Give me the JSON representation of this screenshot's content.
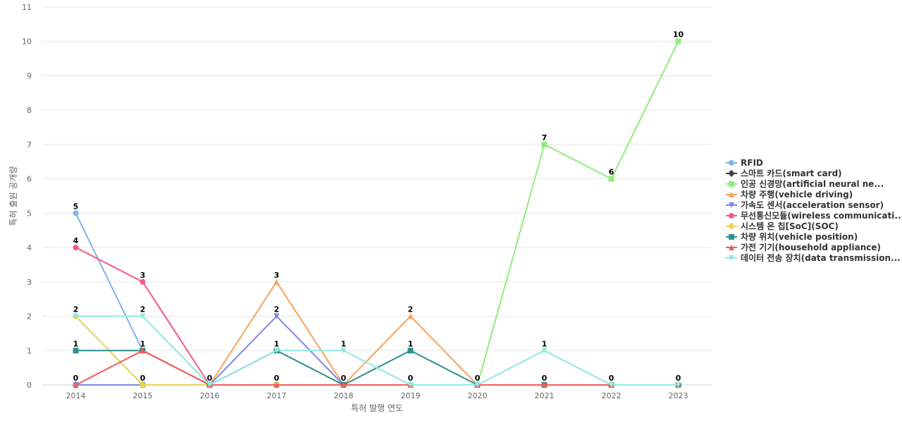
{
  "chart_data": {
    "type": "line",
    "title": "",
    "xlabel": "특허 발행 연도",
    "ylabel": "특허 출원 공개량",
    "x": [
      "2014",
      "2015",
      "2016",
      "2017",
      "2018",
      "2019",
      "2020",
      "2021",
      "2022",
      "2023"
    ],
    "ylim": [
      0,
      11
    ],
    "yticks": [
      0,
      1,
      2,
      3,
      4,
      5,
      6,
      7,
      8,
      9,
      10,
      11
    ],
    "grid": true,
    "legend_position": "right",
    "series": [
      {
        "name": "RFID",
        "color": "#7cb5ec",
        "marker": "circle",
        "values": [
          5,
          1,
          0,
          0,
          0,
          0,
          0,
          0,
          0,
          0
        ]
      },
      {
        "name": "스마트 카드(smart card)",
        "color": "#434348",
        "marker": "diamond",
        "values": [
          0,
          0,
          0,
          0,
          0,
          0,
          0,
          0,
          0,
          0
        ]
      },
      {
        "name": "인공 신경망(artificial neural ne...",
        "color": "#90ed7d",
        "marker": "square",
        "values": [
          0,
          0,
          0,
          0,
          0,
          0,
          0,
          7,
          6,
          10
        ]
      },
      {
        "name": "차량 주행(vehicle driving)",
        "color": "#f7a35c",
        "marker": "triangle",
        "values": [
          0,
          0,
          0,
          3,
          0,
          2,
          0,
          0,
          0,
          0
        ]
      },
      {
        "name": "가속도 센서(acceleration sensor)",
        "color": "#8085e9",
        "marker": "triangle-down",
        "values": [
          0,
          0,
          0,
          2,
          0,
          0,
          0,
          0,
          0,
          0
        ]
      },
      {
        "name": "무선통신모듈(wireless communicati...",
        "color": "#f15c80",
        "marker": "circle",
        "values": [
          4,
          3,
          0,
          0,
          0,
          0,
          0,
          0,
          0,
          0
        ]
      },
      {
        "name": "시스템 온 칩[SoC](SOC)",
        "color": "#e4d354",
        "marker": "diamond",
        "values": [
          2,
          0,
          0,
          0,
          0,
          0,
          0,
          0,
          0,
          0
        ]
      },
      {
        "name": "차량 위치(vehicle position)",
        "color": "#2b908f",
        "marker": "square",
        "values": [
          1,
          1,
          0,
          1,
          0,
          1,
          0,
          0,
          0,
          0
        ]
      },
      {
        "name": "가전 기기(household appliance)",
        "color": "#f45b5b",
        "marker": "triangle",
        "values": [
          0,
          1,
          0,
          0,
          0,
          0,
          0,
          0,
          0,
          0
        ]
      },
      {
        "name": "데이터 전송 장치(data transmission...",
        "color": "#91e8e1",
        "marker": "triangle-down",
        "values": [
          2,
          2,
          0,
          1,
          1,
          0,
          0,
          1,
          0,
          0
        ]
      }
    ],
    "data_labels": [
      {
        "x": "2014",
        "value": 5
      },
      {
        "x": "2014",
        "value": 4
      },
      {
        "x": "2014",
        "value": 2
      },
      {
        "x": "2014",
        "value": 1
      },
      {
        "x": "2014",
        "value": 0
      },
      {
        "x": "2015",
        "value": 3
      },
      {
        "x": "2015",
        "value": 2
      },
      {
        "x": "2015",
        "value": 1
      },
      {
        "x": "2015",
        "value": 0
      },
      {
        "x": "2016",
        "value": 0
      },
      {
        "x": "2017",
        "value": 3
      },
      {
        "x": "2017",
        "value": 2
      },
      {
        "x": "2017",
        "value": 1
      },
      {
        "x": "2017",
        "value": 0
      },
      {
        "x": "2018",
        "value": 1
      },
      {
        "x": "2018",
        "value": 0
      },
      {
        "x": "2019",
        "value": 2
      },
      {
        "x": "2019",
        "value": 1
      },
      {
        "x": "2019",
        "value": 0
      },
      {
        "x": "2020",
        "value": 0
      },
      {
        "x": "2021",
        "value": 7
      },
      {
        "x": "2021",
        "value": 1
      },
      {
        "x": "2021",
        "value": 0
      },
      {
        "x": "2022",
        "value": 6
      },
      {
        "x": "2022",
        "value": 0
      },
      {
        "x": "2023",
        "value": 10
      },
      {
        "x": "2023",
        "value": 0
      }
    ]
  }
}
